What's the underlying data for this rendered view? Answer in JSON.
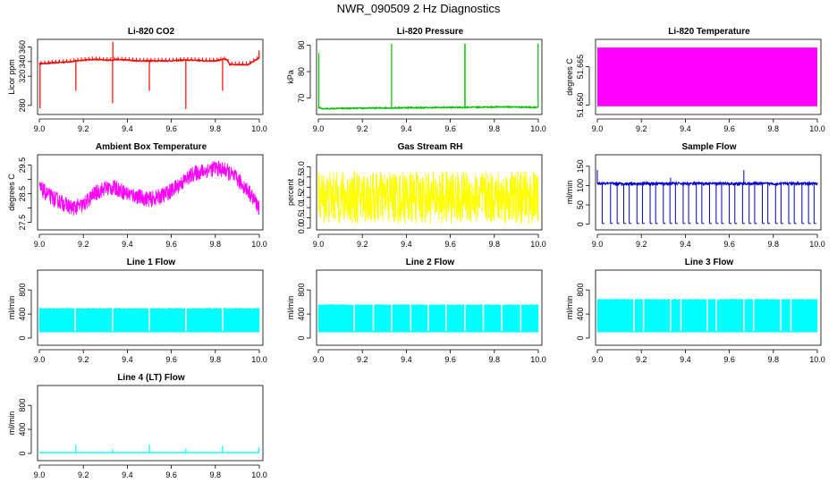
{
  "figure": {
    "title": "NWR_090509  2 Hz Diagnostics"
  },
  "chart_data": [
    {
      "type": "line",
      "title": "Li-820 CO2",
      "xlabel": "",
      "ylabel": "Licor ppm",
      "color": "#ff0000",
      "xlim": [
        0,
        1
      ],
      "xticks": [
        0,
        0.2,
        0.4,
        0.6,
        0.8,
        1.0
      ],
      "xtick_labels": [
        "9.0",
        "9.2",
        "9.4",
        "9.6",
        "9.8",
        "10.0"
      ],
      "ylim": [
        270,
        368
      ],
      "yticks": [
        280,
        320,
        340,
        360
      ],
      "ytick_labels": [
        "280",
        "320",
        "340",
        "360"
      ],
      "series": [
        {
          "x": [
            0,
            0.05,
            0.1,
            0.15,
            0.166,
            0.2,
            0.25,
            0.3,
            0.333,
            0.35,
            0.4,
            0.45,
            0.5,
            0.55,
            0.6,
            0.65,
            0.666,
            0.7,
            0.75,
            0.8,
            0.833,
            0.85,
            0.866,
            0.9,
            0.95,
            1.0
          ],
          "y": [
            337,
            338,
            339,
            340,
            341,
            342,
            343,
            342,
            342,
            343,
            342,
            341,
            341,
            341,
            341,
            342,
            342,
            342,
            341,
            341,
            343,
            343,
            336,
            336,
            336,
            345
          ]
        }
      ],
      "spikes": [
        {
          "x": 0.003,
          "y": 276
        },
        {
          "x": 0.166,
          "y": 300
        },
        {
          "x": 0.333,
          "y": 283
        },
        {
          "x": 0.334,
          "y": 367
        },
        {
          "x": 0.5,
          "y": 300
        },
        {
          "x": 0.666,
          "y": 275
        },
        {
          "x": 0.833,
          "y": 300
        },
        {
          "x": 0.999,
          "y": 355
        }
      ]
    },
    {
      "type": "line",
      "title": "Li-820 Pressure",
      "xlabel": "",
      "ylabel": "kPa",
      "color": "#00c000",
      "xlim": [
        0,
        1
      ],
      "xticks": [
        0,
        0.2,
        0.4,
        0.6,
        0.8,
        1.0
      ],
      "xtick_labels": [
        "9.0",
        "9.2",
        "9.4",
        "9.6",
        "9.8",
        "10.0"
      ],
      "ylim": [
        64.5,
        91.5
      ],
      "yticks": [
        70,
        80,
        90
      ],
      "ytick_labels": [
        "70",
        "80",
        "90"
      ],
      "series": [
        {
          "x": [
            0,
            0.02,
            0.1,
            0.2,
            0.3,
            0.333,
            0.34,
            0.4,
            0.5,
            0.6,
            0.666,
            0.68,
            0.75,
            0.85,
            0.95,
            1.0
          ],
          "y": [
            66.5,
            66.0,
            66.1,
            66.2,
            66.3,
            66.3,
            66.3,
            66.4,
            66.4,
            66.5,
            66.5,
            66.6,
            66.6,
            66.7,
            66.6,
            66.5
          ]
        }
      ],
      "spikes": [
        {
          "x": 0.002,
          "y": 87
        },
        {
          "x": 0.333,
          "y": 90.5
        },
        {
          "x": 0.666,
          "y": 90.5
        },
        {
          "x": 0.667,
          "y": 90.5
        },
        {
          "x": 0.999,
          "y": 90.5
        }
      ]
    },
    {
      "type": "area",
      "title": "Li-820 Temperature",
      "xlabel": "",
      "ylabel": "degrees C",
      "color": "#ff00ff",
      "xlim": [
        0,
        1
      ],
      "xticks": [
        0,
        0.2,
        0.4,
        0.6,
        0.8,
        1.0
      ],
      "xtick_labels": [
        "9.0",
        "9.2",
        "9.4",
        "9.6",
        "9.8",
        "10.0"
      ],
      "ylim": [
        51.647,
        51.675
      ],
      "yticks": [
        51.65,
        51.665
      ],
      "ytick_labels": [
        "51.650",
        "51.665"
      ],
      "band": {
        "low": 51.6495,
        "high": 51.6725
      }
    },
    {
      "type": "line",
      "title": "Ambient Box Temperature",
      "xlabel": "",
      "ylabel": "degrees C",
      "color": "#ff00ff",
      "xlim": [
        0,
        1
      ],
      "xticks": [
        0,
        0.2,
        0.4,
        0.6,
        0.8,
        1.0
      ],
      "xtick_labels": [
        "9.0",
        "9.2",
        "9.4",
        "9.6",
        "9.8",
        "10.0"
      ],
      "ylim": [
        27.3,
        29.8
      ],
      "yticks": [
        27.5,
        28.0,
        28.5,
        29.0,
        29.5
      ],
      "ytick_labels": [
        "27.5",
        "",
        "28.5",
        "",
        "29.5"
      ],
      "series": [
        {
          "x": [
            0,
            0.05,
            0.1,
            0.15,
            0.2,
            0.25,
            0.3,
            0.35,
            0.4,
            0.45,
            0.5,
            0.55,
            0.6,
            0.65,
            0.7,
            0.75,
            0.8,
            0.85,
            0.9,
            0.95,
            1.0
          ],
          "y": [
            28.7,
            28.4,
            28.2,
            28.0,
            28.1,
            28.5,
            28.7,
            28.7,
            28.5,
            28.4,
            28.3,
            28.4,
            28.6,
            28.9,
            29.2,
            29.3,
            29.4,
            29.3,
            29.0,
            28.6,
            28.0
          ]
        }
      ],
      "noise": 0.28
    },
    {
      "type": "line",
      "title": "Gas Stream RH",
      "xlabel": "",
      "ylabel": "percent",
      "color": "#ffff00",
      "xlim": [
        0,
        1
      ],
      "xticks": [
        0,
        0.2,
        0.4,
        0.6,
        0.8,
        1.0
      ],
      "xtick_labels": [
        "9.0",
        "9.2",
        "9.4",
        "9.6",
        "9.8",
        "10.0"
      ],
      "ylim": [
        0,
        3.5
      ],
      "yticks": [
        0.0,
        0.5,
        1.0,
        1.5,
        2.0,
        2.5,
        3.0
      ],
      "ytick_labels": [
        "0.0",
        "0.5",
        "1.0",
        "1.5",
        "2.0",
        "2.5",
        "3.0"
      ],
      "series": [
        {
          "x": [
            0,
            1
          ],
          "y": [
            1.5,
            1.5
          ]
        }
      ],
      "noise": 1.3
    },
    {
      "type": "line",
      "title": "Sample Flow",
      "xlabel": "",
      "ylabel": "ml/min",
      "color": "#0000cc",
      "xlim": [
        0,
        1
      ],
      "xticks": [
        0,
        0.2,
        0.4,
        0.6,
        0.8,
        1.0
      ],
      "xtick_labels": [
        "9.0",
        "9.2",
        "9.4",
        "9.6",
        "9.8",
        "10.0"
      ],
      "ylim": [
        -10,
        175
      ],
      "yticks": [
        0,
        50,
        100,
        150
      ],
      "ytick_labels": [
        "0",
        "50",
        "100",
        "150"
      ],
      "baseline": 105,
      "dips": [
        0.022,
        0.06,
        0.09,
        0.12,
        0.145,
        0.18,
        0.205,
        0.24,
        0.265,
        0.3,
        0.33,
        0.355,
        0.39,
        0.415,
        0.45,
        0.475,
        0.51,
        0.54,
        0.565,
        0.6,
        0.625,
        0.66,
        0.69,
        0.715,
        0.75,
        0.775,
        0.81,
        0.835,
        0.87,
        0.895,
        0.93,
        0.96,
        0.985
      ],
      "dip_value": 2,
      "peaks": [
        {
          "x": 0.0,
          "y": 140
        },
        {
          "x": 0.333,
          "y": 120
        },
        {
          "x": 0.666,
          "y": 140
        }
      ]
    },
    {
      "type": "area",
      "title": "Line 1 Flow",
      "xlabel": "",
      "ylabel": "ml/min",
      "color": "#00ffff",
      "xlim": [
        0,
        1
      ],
      "xticks": [
        0,
        0.2,
        0.4,
        0.6,
        0.8,
        1.0
      ],
      "xtick_labels": [
        "9.0",
        "9.2",
        "9.4",
        "9.6",
        "9.8",
        "10.0"
      ],
      "ylim": [
        -90,
        1100
      ],
      "yticks": [
        0,
        400,
        800
      ],
      "ytick_labels": [
        "0",
        "400",
        "800"
      ],
      "band": {
        "low": 100,
        "high": 500
      },
      "gaps": [
        0.163,
        0.333,
        0.5,
        0.666,
        0.833
      ]
    },
    {
      "type": "area",
      "title": "Line 2 Flow",
      "xlabel": "",
      "ylabel": "ml/min",
      "color": "#00ffff",
      "xlim": [
        0,
        1
      ],
      "xticks": [
        0,
        0.2,
        0.4,
        0.6,
        0.8,
        1.0
      ],
      "xtick_labels": [
        "9.0",
        "9.2",
        "9.4",
        "9.6",
        "9.8",
        "10.0"
      ],
      "ylim": [
        -90,
        1100
      ],
      "yticks": [
        0,
        400,
        800
      ],
      "ytick_labels": [
        "0",
        "400",
        "800"
      ],
      "band": {
        "low": 100,
        "high": 560
      },
      "gaps": [
        0.163,
        0.25,
        0.333,
        0.42,
        0.5,
        0.58,
        0.666,
        0.75,
        0.833,
        0.92
      ]
    },
    {
      "type": "area",
      "title": "Line 3 Flow",
      "xlabel": "",
      "ylabel": "ml/min",
      "color": "#00ffff",
      "xlim": [
        0,
        1
      ],
      "xticks": [
        0,
        0.2,
        0.4,
        0.6,
        0.8,
        1.0
      ],
      "xtick_labels": [
        "9.0",
        "9.2",
        "9.4",
        "9.6",
        "9.8",
        "10.0"
      ],
      "ylim": [
        -90,
        1100
      ],
      "yticks": [
        0,
        400,
        800
      ],
      "ytick_labels": [
        "0",
        "400",
        "800"
      ],
      "band": {
        "low": 100,
        "high": 650
      },
      "gaps": [
        0.166,
        0.21,
        0.333,
        0.38,
        0.5,
        0.54,
        0.666,
        0.71,
        0.833,
        0.88
      ]
    },
    {
      "type": "line",
      "title": "Line 4 (LT) Flow",
      "xlabel": "",
      "ylabel": "ml/min",
      "color": "#00ffff",
      "xlim": [
        0,
        1
      ],
      "xticks": [
        0,
        0.2,
        0.4,
        0.6,
        0.8,
        1.0
      ],
      "xtick_labels": [
        "9.0",
        "9.2",
        "9.4",
        "9.6",
        "9.8",
        "10.0"
      ],
      "ylim": [
        -90,
        1100
      ],
      "yticks": [
        0,
        400,
        800
      ],
      "ytick_labels": [
        "0",
        "400",
        "800"
      ],
      "baseline": 15,
      "peaks": [
        {
          "x": 0.166,
          "y": 140
        },
        {
          "x": 0.333,
          "y": 70
        },
        {
          "x": 0.5,
          "y": 145
        },
        {
          "x": 0.666,
          "y": 85
        },
        {
          "x": 0.833,
          "y": 130
        },
        {
          "x": 0.998,
          "y": 95
        }
      ]
    }
  ]
}
